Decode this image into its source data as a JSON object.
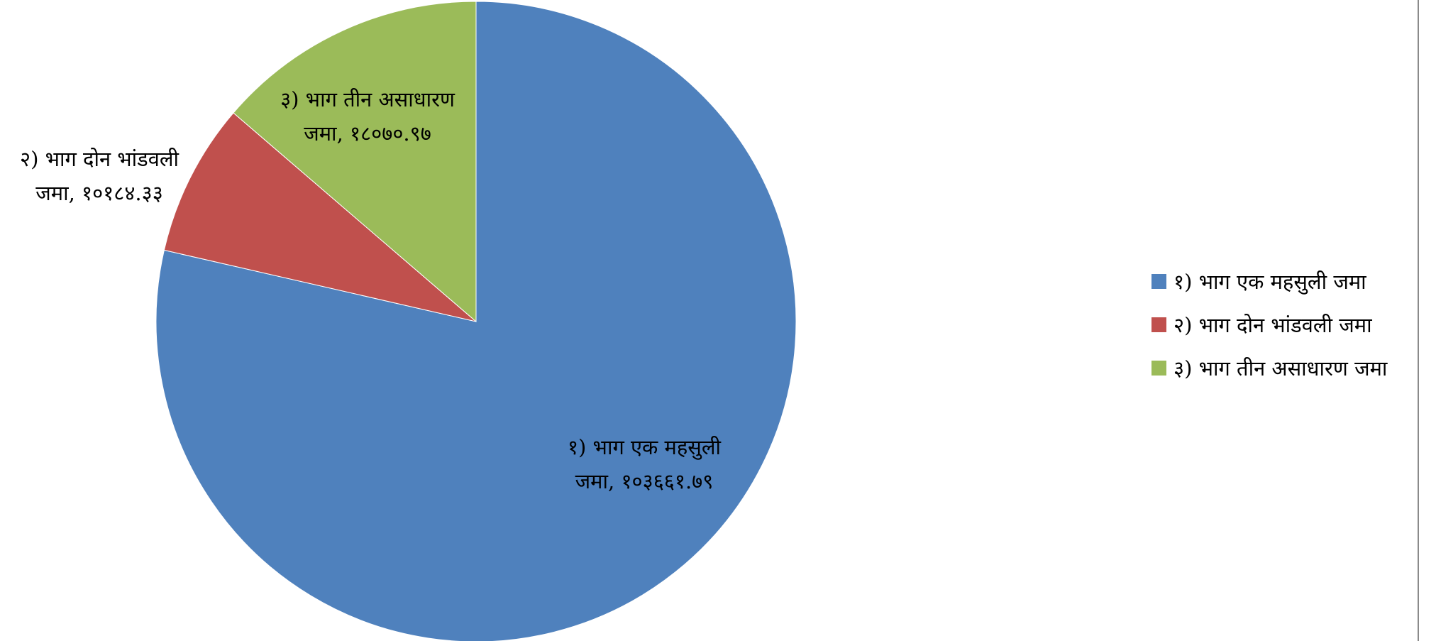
{
  "chart_data": {
    "type": "pie",
    "slices": [
      {
        "label": "१) भाग एक महसुली जमा",
        "value": 103661.79,
        "value_text": "१०३६६१.७९",
        "color": "#4F81BD",
        "data_label_lines": [
          "१) भाग एक महसुली",
          "जमा, १०३६६१.७९"
        ]
      },
      {
        "label": "२) भाग दोन भांडवली जमा",
        "value": 10184.33,
        "value_text": "१०१८४.३३",
        "color": "#C0504D",
        "data_label_lines": [
          "२) भाग दोन भांडवली",
          "जमा, १०१८४.३३"
        ]
      },
      {
        "label": "३) भाग तीन असाधारण जमा",
        "value": 18070.97,
        "value_text": "१८०७०.९७",
        "color": "#9BBB59",
        "data_label_lines": [
          "३) भाग तीन असाधारण",
          "जमा, १८०७०.९७"
        ]
      }
    ],
    "start_angle": "12 o'clock",
    "direction": "clockwise",
    "legend_position": "right",
    "title": ""
  }
}
